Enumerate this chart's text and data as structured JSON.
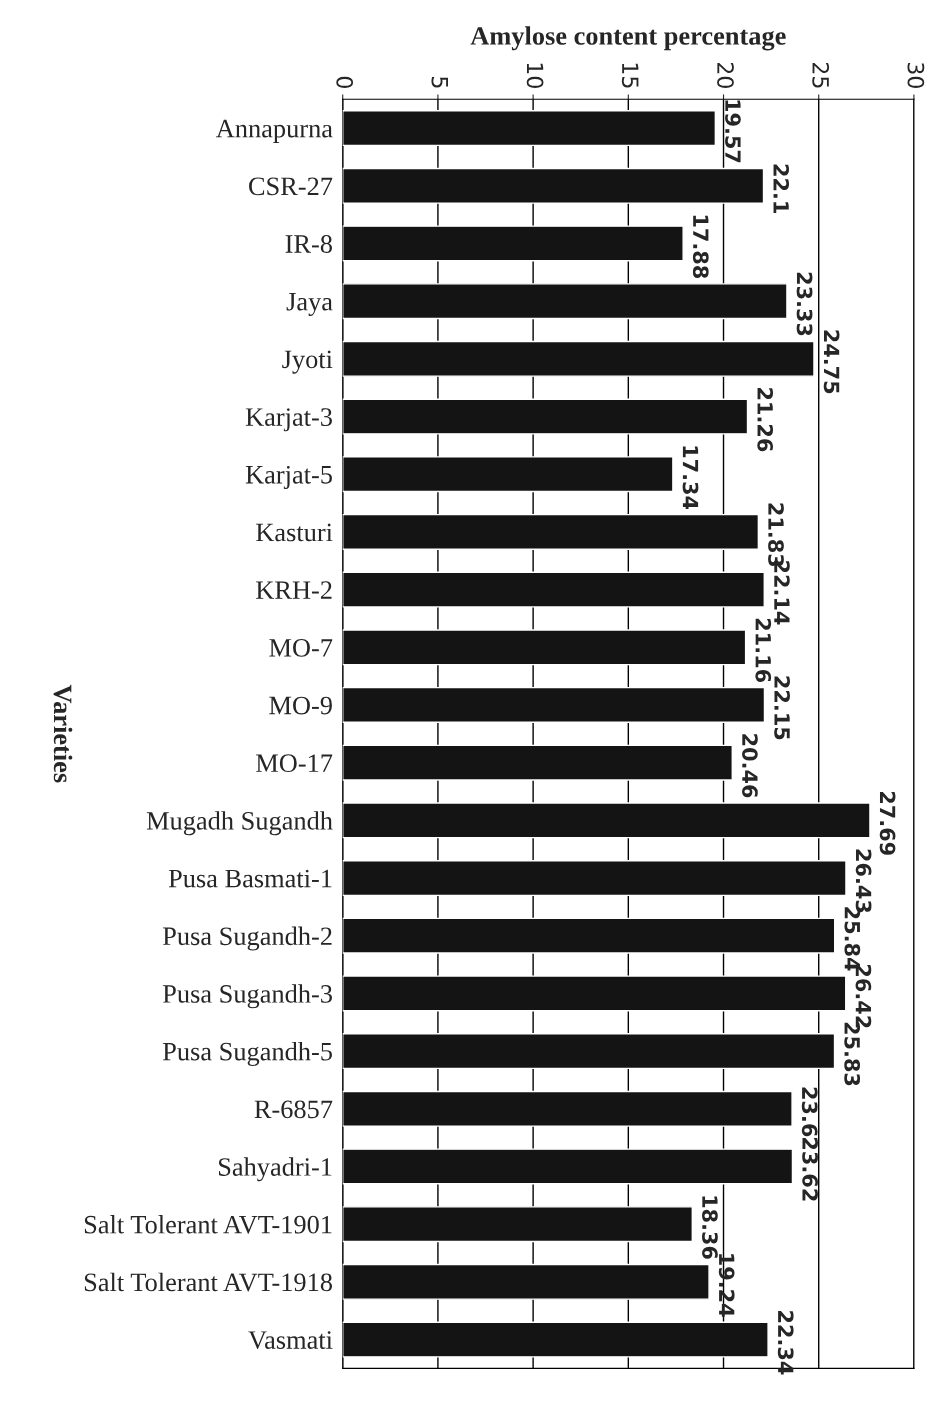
{
  "chart_data": {
    "type": "bar",
    "orientation": "horizontal",
    "xlabel": "Amylose content percentage",
    "ylabel": "Varieties",
    "categories": [
      "Annapurna",
      "CSR-27",
      "IR-8",
      "Jaya",
      "Jyoti",
      "Karjat-3",
      "Karjat-5",
      "Kasturi",
      "KRH-2",
      "MO-7",
      "MO-9",
      "MO-17",
      "Mugadh Sugandh",
      "Pusa Basmati-1",
      "Pusa Sugandh-2",
      "Pusa Sugandh-3",
      "Pusa Sugandh-5",
      "R-6857",
      "Sahyadri-1",
      "Salt Tolerant AVT-1901",
      "Salt Tolerant AVT-1918",
      "Vasmati"
    ],
    "values": [
      19.57,
      22.1,
      17.88,
      23.33,
      24.75,
      21.26,
      17.34,
      21.83,
      22.14,
      21.16,
      22.15,
      20.46,
      27.69,
      26.43,
      25.84,
      26.42,
      25.83,
      23.6,
      23.62,
      18.36,
      19.24,
      22.34
    ],
    "color": "#141414",
    "xlim": [
      0,
      30
    ],
    "xticks": [
      0,
      5,
      10,
      15,
      20,
      25,
      30
    ],
    "grid": "x",
    "data_labels": true
  }
}
